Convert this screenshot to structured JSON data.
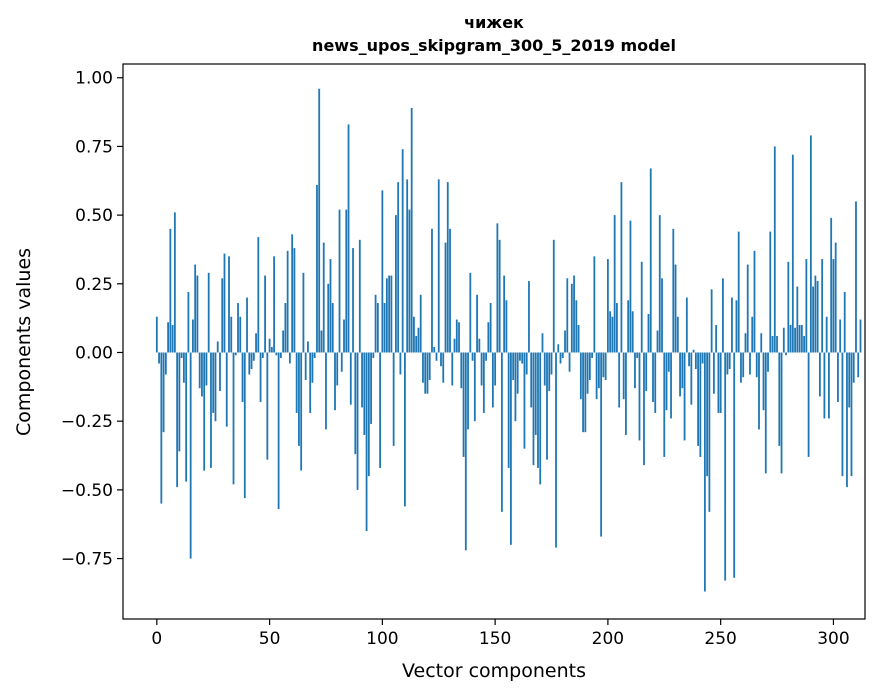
{
  "chart_data": {
    "type": "bar",
    "title_lines": [
      "чижек",
      "news_upos_skipgram_300_5_2019 model"
    ],
    "xlabel": "Vector components",
    "ylabel": "Components values",
    "xlim": [
      -15,
      314
    ],
    "ylim": [
      -0.97,
      1.05
    ],
    "x_ticks": [
      0,
      50,
      100,
      150,
      200,
      250,
      300
    ],
    "x_tick_labels": [
      "0",
      "50",
      "100",
      "150",
      "200",
      "250",
      "300"
    ],
    "y_ticks": [
      -0.75,
      -0.5,
      -0.25,
      0.0,
      0.25,
      0.5,
      0.75,
      1.0
    ],
    "y_tick_labels": [
      "−0.75",
      "−0.50",
      "−0.25",
      "0.00",
      "0.25",
      "0.50",
      "0.75",
      "1.00"
    ],
    "bar_color": "#1f77b4",
    "grid": false,
    "values": [
      0.13,
      -0.04,
      -0.55,
      -0.29,
      -0.08,
      0.11,
      0.45,
      0.1,
      0.51,
      -0.49,
      -0.36,
      -0.02,
      -0.11,
      -0.47,
      0.22,
      -0.75,
      0.12,
      0.32,
      0.28,
      -0.13,
      -0.16,
      -0.43,
      -0.12,
      0.29,
      -0.42,
      -0.22,
      -0.25,
      0.04,
      -0.14,
      0.27,
      0.36,
      -0.27,
      0.35,
      0.13,
      -0.48,
      -0.01,
      0.18,
      0.13,
      -0.18,
      -0.53,
      0.2,
      -0.08,
      -0.06,
      -0.03,
      0.07,
      0.42,
      -0.18,
      -0.02,
      0.28,
      -0.39,
      0.05,
      0.02,
      0.35,
      -0.01,
      -0.57,
      -0.02,
      0.08,
      0.18,
      0.37,
      -0.04,
      0.43,
      0.38,
      -0.22,
      -0.34,
      -0.43,
      0.29,
      -0.1,
      0.04,
      -0.22,
      -0.11,
      -0.02,
      0.61,
      0.96,
      0.08,
      0.4,
      -0.28,
      0.25,
      0.34,
      0.18,
      -0.21,
      -0.12,
      0.52,
      -0.07,
      0.12,
      0.52,
      0.83,
      -0.19,
      0.38,
      -0.37,
      -0.5,
      0.41,
      -0.2,
      -0.3,
      -0.65,
      -0.45,
      -0.26,
      -0.02,
      0.21,
      0.18,
      -0.42,
      0.59,
      0.18,
      0.27,
      0.28,
      0.28,
      -0.34,
      0.5,
      0.62,
      -0.08,
      0.74,
      -0.56,
      0.63,
      0.52,
      0.89,
      0.13,
      0.06,
      0.09,
      0.21,
      -0.11,
      -0.15,
      -0.15,
      -0.1,
      0.45,
      0.02,
      -0.03,
      0.63,
      -0.05,
      -0.11,
      0.4,
      0.62,
      0.45,
      -0.12,
      0.05,
      0.12,
      0.11,
      -0.13,
      -0.38,
      -0.72,
      -0.28,
      0.29,
      -0.03,
      -0.25,
      0.21,
      0.05,
      -0.12,
      -0.22,
      -0.03,
      0.11,
      0.18,
      -0.2,
      -0.12,
      0.47,
      0.41,
      -0.58,
      0.28,
      0.19,
      -0.42,
      -0.7,
      -0.1,
      -0.25,
      -0.15,
      -0.03,
      -0.04,
      -0.35,
      -0.08,
      0.26,
      -0.2,
      -0.41,
      -0.3,
      -0.42,
      -0.48,
      0.07,
      -0.12,
      -0.39,
      -0.14,
      -0.08,
      0.41,
      -0.71,
      0.03,
      -0.04,
      -0.02,
      0.08,
      0.27,
      -0.07,
      0.25,
      0.28,
      0.19,
      0.1,
      -0.17,
      -0.29,
      -0.29,
      -0.15,
      -0.1,
      -0.02,
      0.35,
      -0.17,
      -0.13,
      -0.67,
      -0.09,
      -0.1,
      0.34,
      0.15,
      0.13,
      0.5,
      0.18,
      -0.2,
      0.62,
      -0.17,
      -0.3,
      0.19,
      0.48,
      0.15,
      -0.13,
      -0.02,
      -0.32,
      0.33,
      -0.41,
      -0.14,
      0.14,
      0.67,
      -0.18,
      -0.22,
      0.08,
      0.5,
      0.27,
      -0.38,
      -0.21,
      -0.07,
      -0.24,
      0.45,
      0.32,
      0.13,
      -0.16,
      -0.13,
      -0.32,
      0.2,
      -0.05,
      -0.19,
      0.01,
      -0.06,
      -0.34,
      -0.38,
      -0.04,
      -0.87,
      -0.45,
      -0.58,
      0.23,
      -0.15,
      0.1,
      -0.22,
      -0.22,
      0.27,
      -0.83,
      -0.08,
      -0.06,
      0.2,
      -0.82,
      0.19,
      0.44,
      -0.11,
      -0.09,
      0.07,
      0.32,
      -0.08,
      0.13,
      0.37,
      -0.09,
      -0.28,
      0.07,
      -0.21,
      -0.44,
      -0.07,
      0.44,
      0.06,
      0.75,
      0.06,
      -0.34,
      -0.44,
      0.09,
      -0.01,
      0.33,
      0.1,
      0.72,
      0.09,
      0.24,
      0.1,
      0.1,
      0.06,
      0.34,
      -0.38,
      0.79,
      0.24,
      0.28,
      0.26,
      -0.16,
      0.34,
      -0.24,
      0.13,
      -0.24,
      0.49,
      0.34,
      0.4,
      -0.18,
      0.12,
      -0.45,
      0.22,
      -0.49,
      -0.2,
      -0.45,
      -0.11,
      0.55,
      -0.09,
      0.12
    ]
  }
}
